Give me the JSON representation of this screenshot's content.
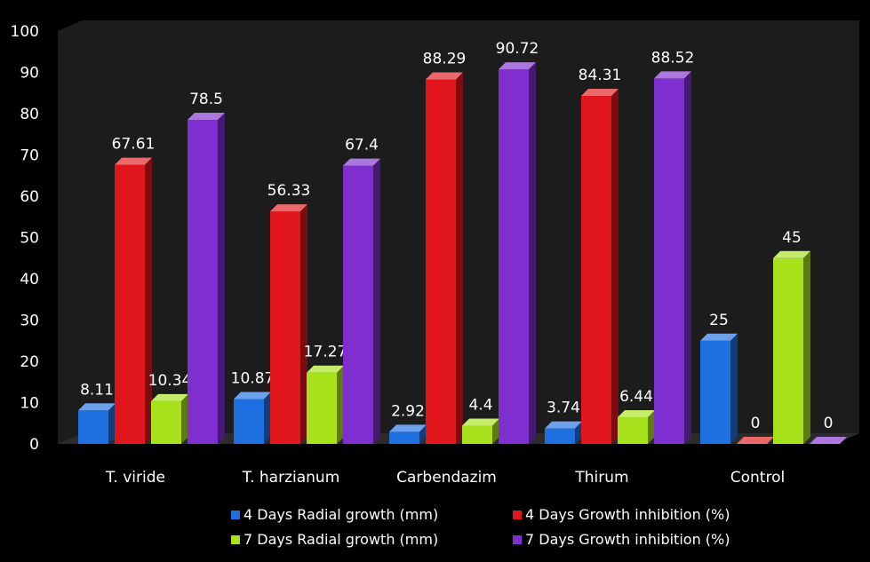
{
  "chart_data": {
    "type": "bar",
    "categories": [
      "T. viride",
      "T. harzianum",
      "Carbendazim",
      "Thirum",
      "Control"
    ],
    "series": [
      {
        "name": "4 Days Radial growth (mm)",
        "values": [
          8.11,
          10.87,
          2.92,
          3.74,
          25
        ],
        "color": "#1e6fe0"
      },
      {
        "name": "4 Days Growth inhibition (%)",
        "values": [
          67.61,
          56.33,
          88.29,
          84.31,
          0
        ],
        "color": "#e0161c"
      },
      {
        "name": "7 Days Radial growth (mm)",
        "values": [
          10.34,
          17.27,
          4.4,
          6.44,
          45
        ],
        "color": "#a8e21c"
      },
      {
        "name": "7 Days Growth inhibition (%)",
        "values": [
          78.5,
          67.4,
          90.72,
          88.52,
          0
        ],
        "color": "#7f2fd0"
      }
    ],
    "ylim": [
      0,
      100
    ],
    "yticks": [
      0,
      10,
      20,
      30,
      40,
      50,
      60,
      70,
      80,
      90,
      100
    ],
    "legend_position": "bottom",
    "grid": false
  }
}
